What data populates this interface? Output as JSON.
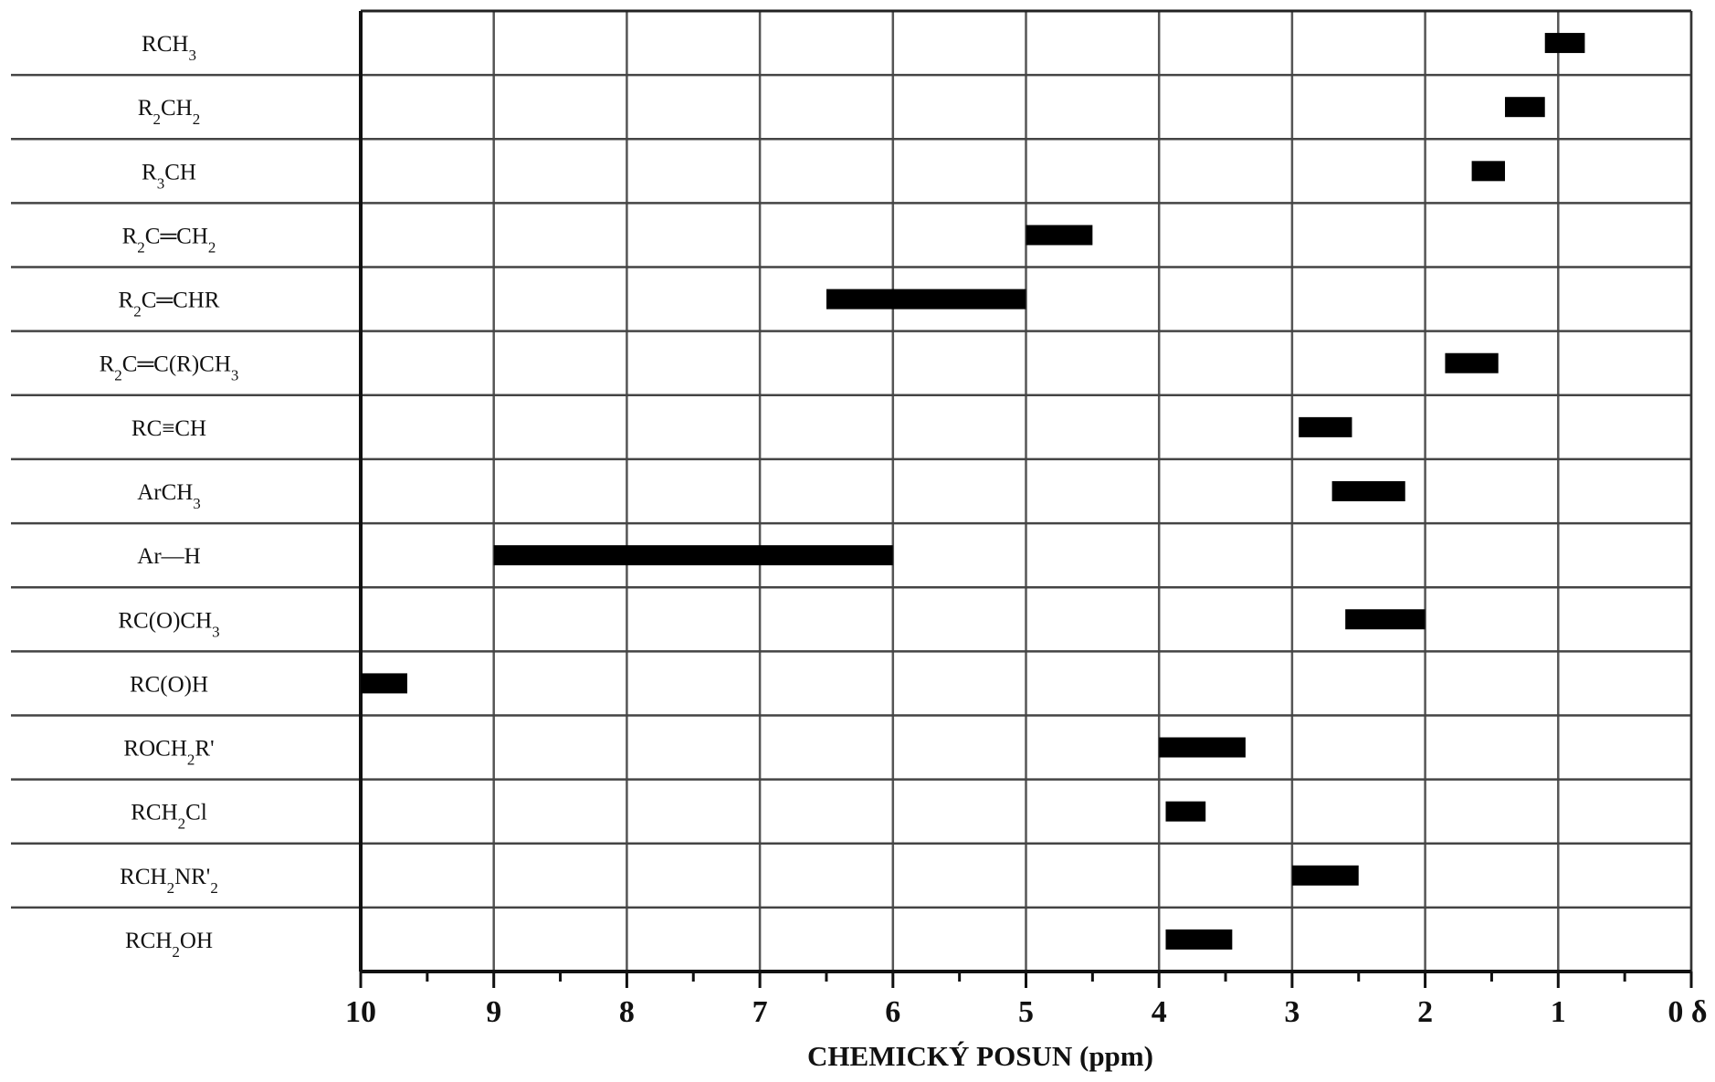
{
  "chart_data": {
    "type": "bar",
    "orientation": "horizontal-range",
    "title": "",
    "xlabel": "CHEMICKÝ POSUN (ppm)",
    "ylabel": "",
    "x_axis_reversed": true,
    "xlim": [
      10,
      0
    ],
    "x_major_ticks": [
      "10",
      "9",
      "8",
      "7",
      "6",
      "5",
      "4",
      "3",
      "2",
      "1",
      "0 δ"
    ],
    "x_minor_ticks_every": 0.5,
    "grid": true,
    "legend": "none",
    "bar_color": "#000000",
    "categories": [
      {
        "parts": [
          {
            "t": "RCH"
          },
          {
            "t": "3",
            "sub": true
          }
        ],
        "range": [
          1.1,
          0.8
        ]
      },
      {
        "parts": [
          {
            "t": "R"
          },
          {
            "t": "2",
            "sub": true
          },
          {
            "t": "CH"
          },
          {
            "t": "2",
            "sub": true
          }
        ],
        "range": [
          1.4,
          1.1
        ]
      },
      {
        "parts": [
          {
            "t": "R"
          },
          {
            "t": "3",
            "sub": true
          },
          {
            "t": "CH"
          }
        ],
        "range": [
          1.65,
          1.4
        ]
      },
      {
        "parts": [
          {
            "t": "R"
          },
          {
            "t": "2",
            "sub": true
          },
          {
            "t": "C═CH"
          },
          {
            "t": "2",
            "sub": true
          }
        ],
        "range": [
          5.0,
          4.5
        ]
      },
      {
        "parts": [
          {
            "t": "R"
          },
          {
            "t": "2",
            "sub": true
          },
          {
            "t": "C═CHR"
          }
        ],
        "range": [
          6.5,
          5.0
        ]
      },
      {
        "parts": [
          {
            "t": "R"
          },
          {
            "t": "2",
            "sub": true
          },
          {
            "t": "C═C(R)CH"
          },
          {
            "t": "3",
            "sub": true
          }
        ],
        "range": [
          1.85,
          1.45
        ]
      },
      {
        "parts": [
          {
            "t": "RC≡CH"
          }
        ],
        "range": [
          2.95,
          2.55
        ]
      },
      {
        "parts": [
          {
            "t": "ArCH"
          },
          {
            "t": "3",
            "sub": true
          }
        ],
        "range": [
          2.7,
          2.15
        ]
      },
      {
        "parts": [
          {
            "t": "Ar—H"
          }
        ],
        "range": [
          9.0,
          6.0
        ]
      },
      {
        "parts": [
          {
            "t": "RC(O)CH"
          },
          {
            "t": "3",
            "sub": true
          }
        ],
        "range": [
          2.6,
          2.0
        ]
      },
      {
        "parts": [
          {
            "t": "RC(O)H"
          }
        ],
        "range": [
          10.0,
          9.65
        ]
      },
      {
        "parts": [
          {
            "t": "ROCH"
          },
          {
            "t": "2",
            "sub": true
          },
          {
            "t": "R'"
          }
        ],
        "range": [
          4.0,
          3.35
        ]
      },
      {
        "parts": [
          {
            "t": "RCH"
          },
          {
            "t": "2",
            "sub": true
          },
          {
            "t": "Cl"
          }
        ],
        "range": [
          3.95,
          3.65
        ]
      },
      {
        "parts": [
          {
            "t": "RCH"
          },
          {
            "t": "2",
            "sub": true
          },
          {
            "t": "NR'"
          },
          {
            "t": "2",
            "sub": true
          }
        ],
        "range": [
          3.0,
          2.5
        ]
      },
      {
        "parts": [
          {
            "t": "RCH"
          },
          {
            "t": "2",
            "sub": true
          },
          {
            "t": "OH"
          }
        ],
        "range": [
          3.95,
          3.45
        ]
      }
    ]
  }
}
